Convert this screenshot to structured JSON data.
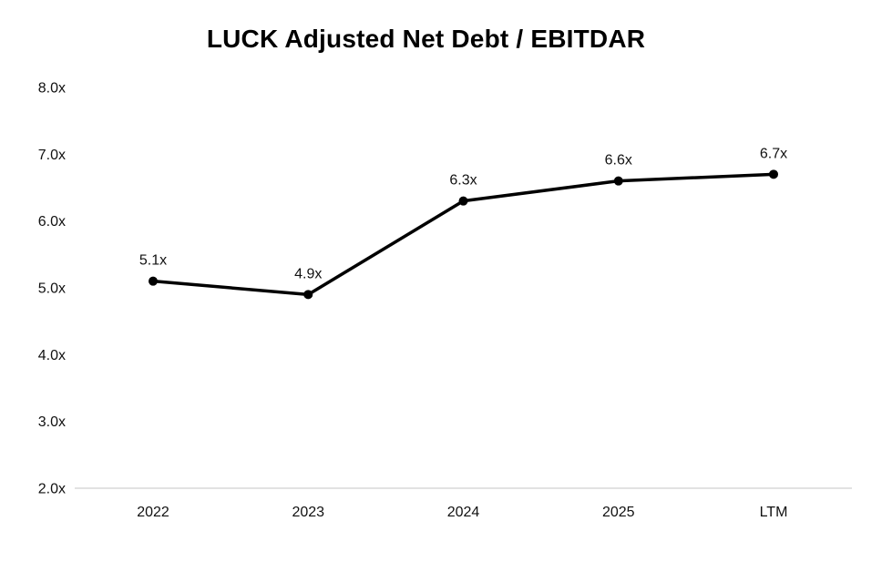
{
  "page": {
    "background": "#ffffff",
    "text_color": "#111111"
  },
  "chart_data": {
    "type": "line",
    "title": "LUCK Adjusted Net Debt / EBITDAR",
    "categories": [
      "2022",
      "2023",
      "2024",
      "2025",
      "LTM"
    ],
    "series": [
      {
        "name": "Adjusted Net Debt / EBITDAR",
        "values": [
          5.1,
          4.9,
          6.3,
          6.6,
          6.7
        ],
        "point_labels": [
          "5.1x",
          "4.9x",
          "6.3x",
          "6.6x",
          "6.7x"
        ],
        "color": "#000000"
      }
    ],
    "xlabel": "",
    "ylabel": "",
    "ylim": [
      2.0,
      8.0
    ],
    "ytick_labels": [
      "8.0x",
      "7.0x",
      "6.0x",
      "5.0x",
      "4.0x",
      "3.0x",
      "2.0x"
    ],
    "ytick_values": [
      8.0,
      7.0,
      6.0,
      5.0,
      4.0,
      3.0,
      2.0
    ],
    "grid": false,
    "legend": "none",
    "axis_line_color": "#d9d9d9",
    "marker": "circle",
    "line_color": "#000000"
  }
}
